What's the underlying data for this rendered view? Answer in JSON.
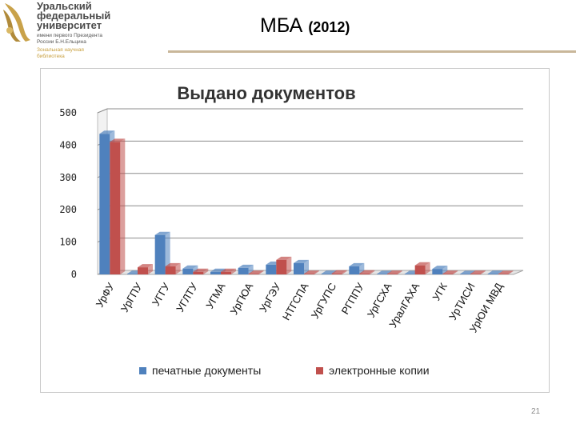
{
  "logo": {
    "lines": [
      "Уральский",
      "федеральный",
      "университет"
    ],
    "subtitle": [
      "имени первого Президента",
      "России Б.Н.Ельцина"
    ],
    "library": [
      "Зональная научная",
      "библиотека"
    ]
  },
  "slide": {
    "title": "МБА",
    "title_year": "(2012)",
    "page_number": "21"
  },
  "colors": {
    "printed": "#4f81bd",
    "electronic": "#c0504d",
    "title_rule": "#c9b79a"
  },
  "chart_data": {
    "type": "bar",
    "title": "Выдано документов",
    "categories": [
      "УрФУ",
      "УрГПУ",
      "УГГУ",
      "УГЛТУ",
      "УГМА",
      "УрГЮА",
      "УрГЭУ",
      "НТГСПА",
      "УрГУПС",
      "РГППУ",
      "УрГСХА",
      "УралГАХА",
      "УГК",
      "УрТИСИ",
      "УрЮИ МВД"
    ],
    "series": [
      {
        "name": "печатные документы",
        "values": [
          435,
          2,
          122,
          18,
          8,
          20,
          30,
          35,
          2,
          25,
          1,
          1,
          17,
          1,
          2
        ]
      },
      {
        "name": "электронные копии",
        "values": [
          410,
          22,
          25,
          8,
          8,
          2,
          45,
          2,
          3,
          3,
          2,
          28,
          2,
          2,
          1
        ]
      }
    ],
    "yticks": [
      "0",
      "100",
      "200",
      "300",
      "400",
      "500"
    ],
    "ylim": [
      0,
      500
    ],
    "grid": true,
    "legend_position": "bottom"
  }
}
